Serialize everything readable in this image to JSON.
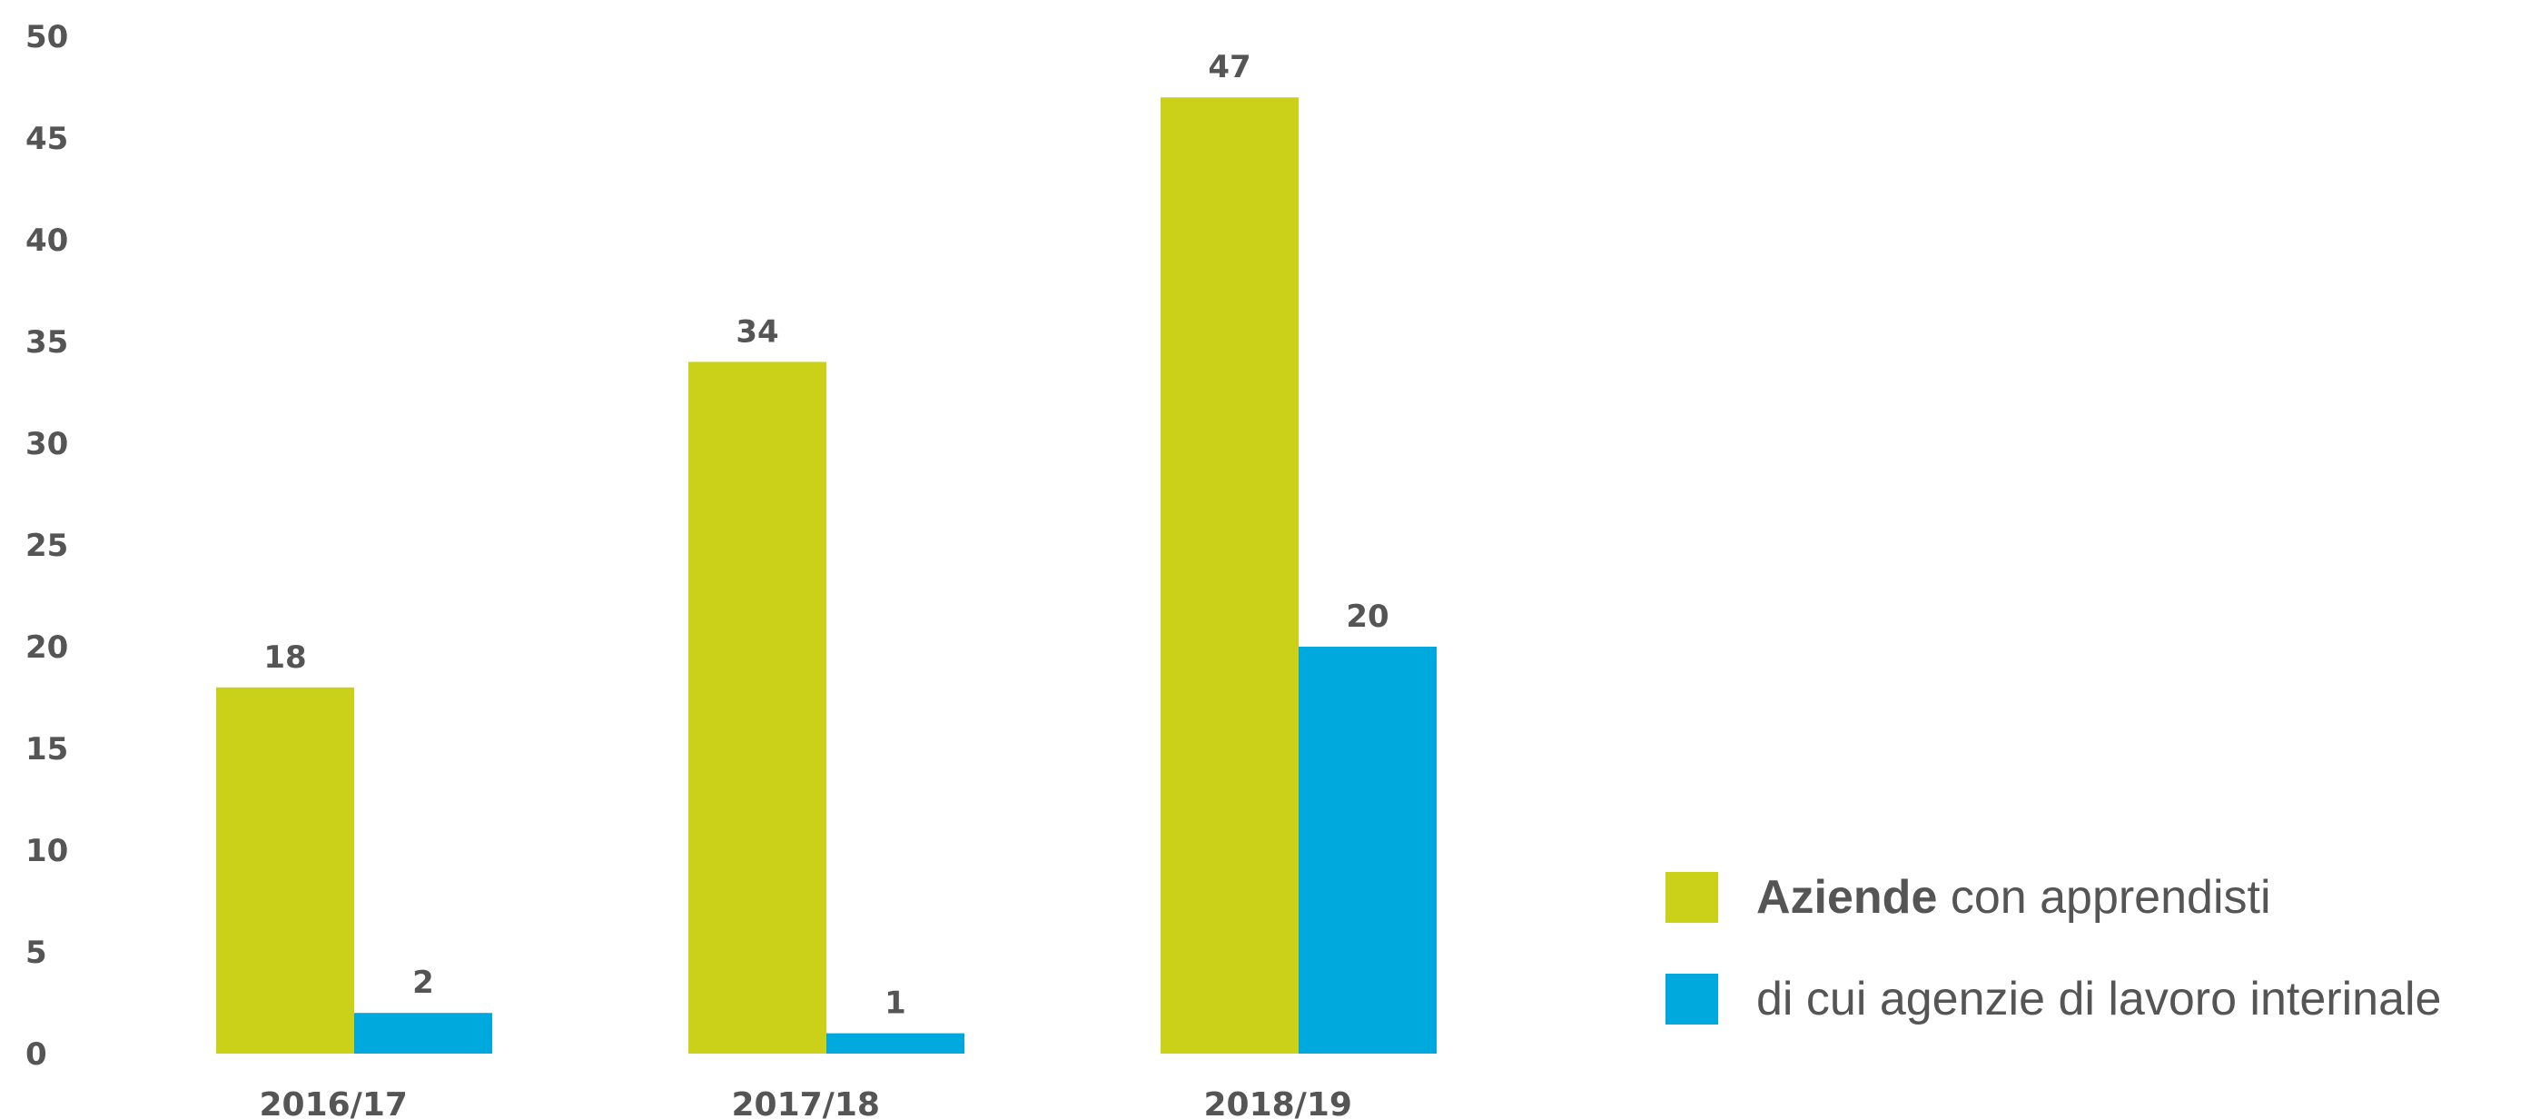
{
  "chart_data": {
    "type": "bar",
    "categories": [
      "2016/17",
      "2017/18",
      "2018/19"
    ],
    "series": [
      {
        "name": "Aziende con apprendisti",
        "values": [
          18,
          34,
          47
        ],
        "color": "#cbd118"
      },
      {
        "name": "di cui agenzie di lavoro interinale",
        "values": [
          2,
          1,
          20
        ],
        "color": "#00a9dd"
      }
    ],
    "ylim": [
      0,
      50
    ],
    "yticks": [
      0,
      5,
      10,
      15,
      20,
      25,
      30,
      35,
      40,
      45,
      50
    ],
    "grid": false,
    "legend_position": "bottom-right"
  },
  "legend": [
    {
      "bold": "Aziende",
      "rest": " con apprendisti"
    },
    {
      "bold": "",
      "rest": "di cui agenzie di lavoro interinale"
    }
  ]
}
